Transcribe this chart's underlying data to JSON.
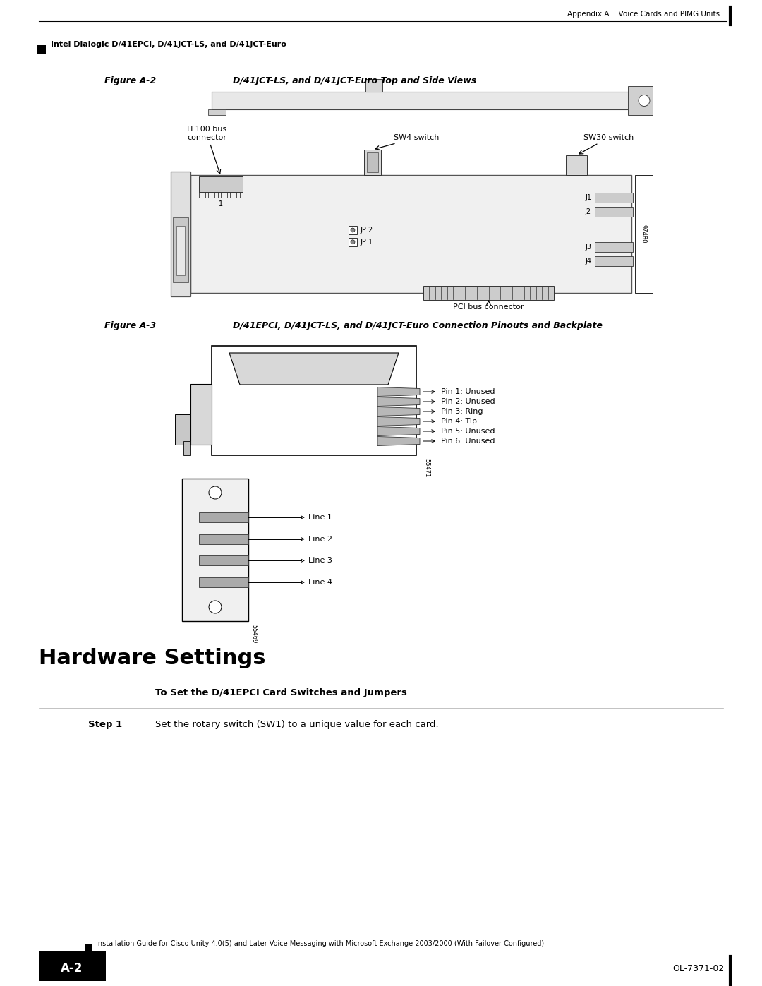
{
  "page_width": 10.8,
  "page_height": 13.97,
  "bg_color": "#ffffff",
  "header_text_right": "Appendix A    Voice Cards and PIMG Units",
  "header_bar_text": "Intel Dialogic D/41EPCI, D/41JCT-LS, and D/41JCT-Euro",
  "footer_page_label": "A-2",
  "footer_right_text": "OL-7371-02",
  "footer_small_text": "Installation Guide for Cisco Unity 4.0(5) and Later Voice Messaging with Microsoft Exchange 2003/2000 (With Failover Configured)",
  "fig2_label": "Figure A-2",
  "fig2_title": "D/41JCT-LS, and D/41JCT-Euro Top and Side Views",
  "fig3_label": "Figure A-3",
  "fig3_title": "D/41EPCI, D/41JCT-LS, and D/41JCT-Euro Connection Pinouts and Backplate",
  "hw_section_title": "Hardware Settings",
  "hw_subsection": "To Set the D/41EPCI Card Switches and Jumpers",
  "step1_label": "Step 1",
  "step1_text": "Set the rotary switch (SW1) to a unique value for each card.",
  "h100_label": "H.100 bus\nconnector",
  "sw4_label": "SW4 switch",
  "sw30_label": "SW30 switch",
  "pci_label": "PCI bus connector",
  "jp2_label": "JP 2",
  "jp1_label": "JP 1",
  "j1_label": "J1",
  "j2_label": "J2",
  "j3_label": "J3",
  "j4_label": "J4",
  "num97480": "97480",
  "fig3_pins": [
    "Pin 1: Unused",
    "Pin 2: Unused",
    "Pin 3: Ring",
    "Pin 4: Tip",
    "Pin 5: Unused",
    "Pin 6: Unused"
  ],
  "fig3_lines": [
    "Line 1",
    "Line 2",
    "Line 3",
    "Line 4"
  ],
  "fig3_num1": "55471",
  "fig3_num2": "55469"
}
